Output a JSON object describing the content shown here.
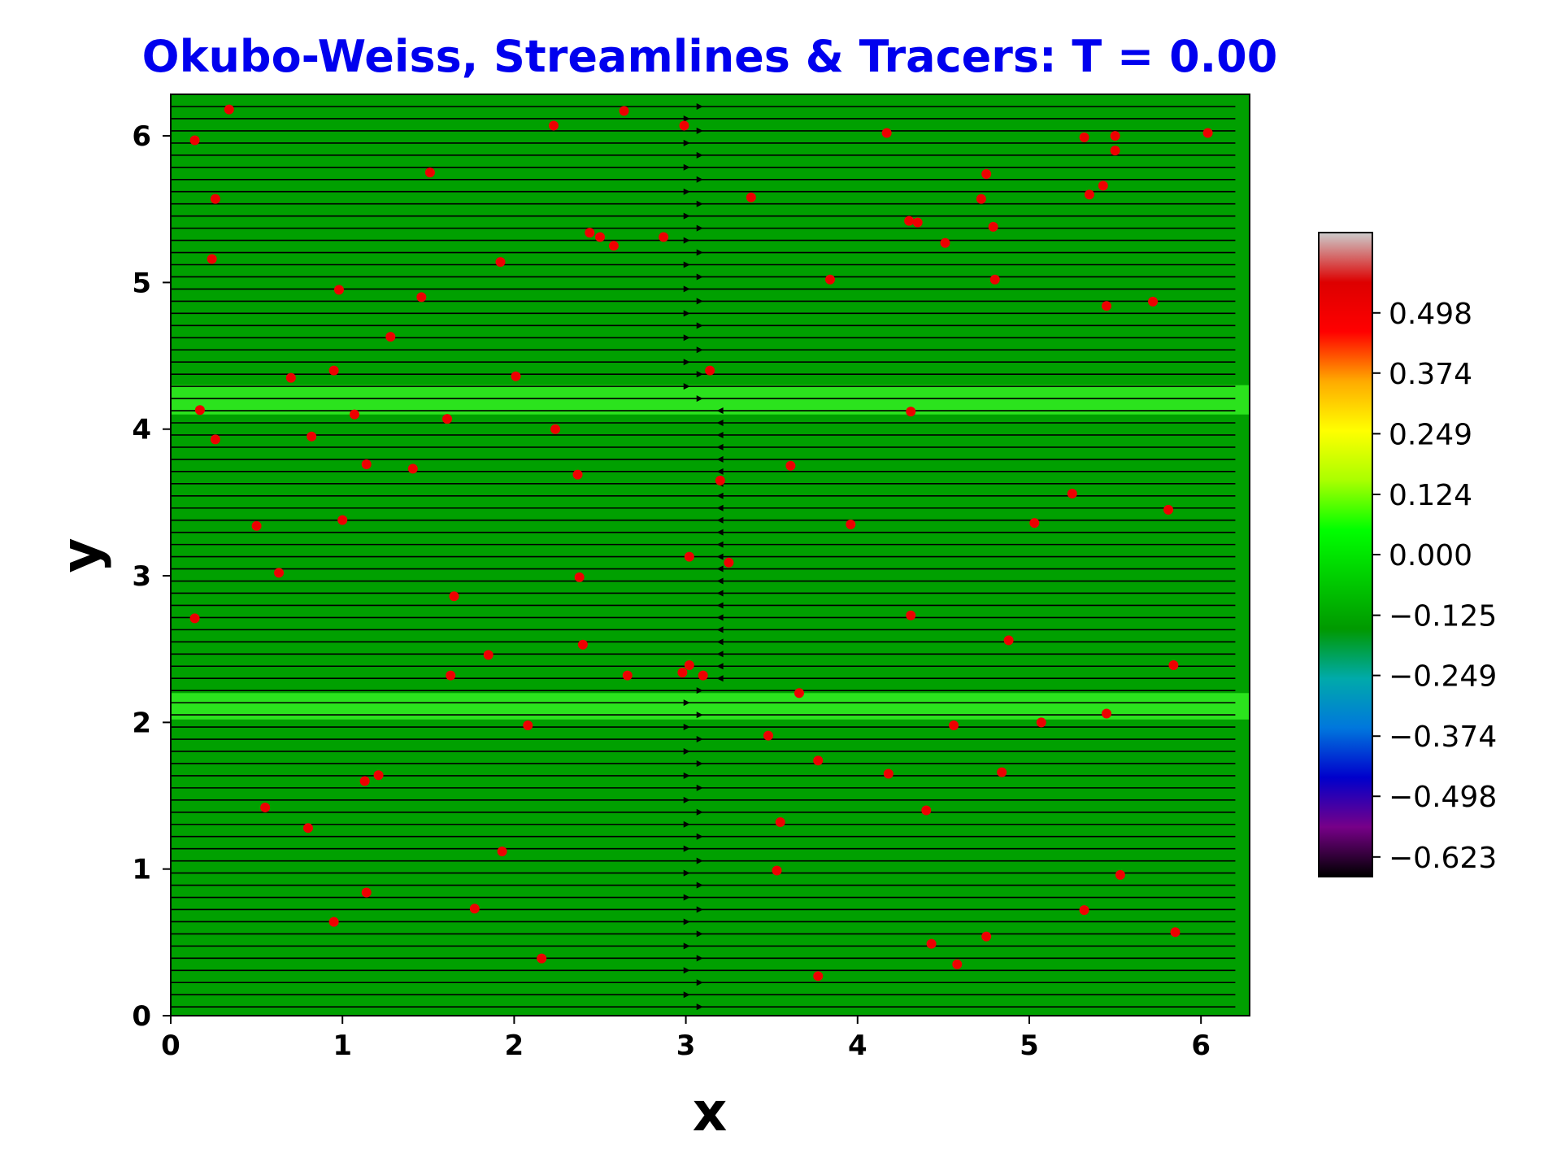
{
  "chart_data": {
    "type": "heatmap",
    "title": "Okubo-Weiss, Streamlines & Tracers: T = 0.00",
    "xlabel": "x",
    "ylabel": "y",
    "xlim": [
      0,
      6.2832
    ],
    "ylim": [
      0,
      6.2832
    ],
    "x_ticks": [
      "0",
      "1",
      "2",
      "3",
      "4",
      "5",
      "6"
    ],
    "y_ticks": [
      "0",
      "1",
      "2",
      "3",
      "4",
      "5",
      "6"
    ],
    "field_colors": {
      "background": "#00a000",
      "band": "#33ee22",
      "streamline": "#000000",
      "tracer": "#ee0000"
    },
    "bands": [
      {
        "y_min": 2.02,
        "y_max": 2.2
      },
      {
        "y_min": 4.1,
        "y_max": 4.3
      }
    ],
    "streamlines": {
      "count": 75,
      "y_min": 0.06,
      "y_max": 6.2,
      "x_start": 0.0,
      "x_end": 6.2,
      "arrow_x_right": 3.1,
      "arrow_x_left": 3.18,
      "leftward_y_range": [
        2.3,
        4.2
      ]
    },
    "tracers": [
      [
        0.14,
        5.97
      ],
      [
        0.34,
        6.18
      ],
      [
        0.26,
        5.57
      ],
      [
        0.24,
        5.16
      ],
      [
        0.98,
        4.95
      ],
      [
        1.28,
        4.63
      ],
      [
        1.46,
        4.9
      ],
      [
        1.51,
        5.75
      ],
      [
        0.7,
        4.35
      ],
      [
        0.95,
        4.4
      ],
      [
        2.23,
        6.07
      ],
      [
        2.64,
        6.17
      ],
      [
        2.99,
        6.07
      ],
      [
        2.44,
        5.34
      ],
      [
        2.5,
        5.31
      ],
      [
        2.58,
        5.25
      ],
      [
        2.87,
        5.31
      ],
      [
        1.92,
        5.14
      ],
      [
        2.01,
        4.36
      ],
      [
        3.14,
        4.4
      ],
      [
        3.38,
        5.58
      ],
      [
        3.84,
        5.02
      ],
      [
        4.17,
        6.02
      ],
      [
        4.3,
        5.42
      ],
      [
        4.35,
        5.41
      ],
      [
        4.51,
        5.27
      ],
      [
        4.72,
        5.57
      ],
      [
        4.75,
        5.74
      ],
      [
        4.79,
        5.38
      ],
      [
        4.8,
        5.02
      ],
      [
        5.32,
        5.99
      ],
      [
        5.5,
        6.0
      ],
      [
        5.35,
        5.6
      ],
      [
        5.43,
        5.66
      ],
      [
        5.5,
        5.9
      ],
      [
        5.45,
        4.84
      ],
      [
        5.72,
        4.87
      ],
      [
        6.04,
        6.02
      ],
      [
        0.17,
        4.13
      ],
      [
        0.26,
        3.93
      ],
      [
        0.82,
        3.95
      ],
      [
        1.07,
        4.1
      ],
      [
        1.14,
        3.76
      ],
      [
        1.41,
        3.73
      ],
      [
        1.61,
        4.07
      ],
      [
        2.24,
        4.0
      ],
      [
        2.37,
        3.69
      ],
      [
        3.2,
        3.65
      ],
      [
        3.61,
        3.75
      ],
      [
        4.31,
        4.12
      ],
      [
        0.5,
        3.34
      ],
      [
        1.0,
        3.38
      ],
      [
        0.63,
        3.02
      ],
      [
        1.65,
        2.86
      ],
      [
        2.38,
        2.99
      ],
      [
        3.02,
        3.13
      ],
      [
        3.25,
        3.09
      ],
      [
        3.96,
        3.35
      ],
      [
        5.03,
        3.36
      ],
      [
        5.25,
        3.56
      ],
      [
        5.81,
        3.45
      ],
      [
        0.14,
        2.71
      ],
      [
        2.4,
        2.53
      ],
      [
        1.85,
        2.46
      ],
      [
        1.63,
        2.32
      ],
      [
        2.66,
        2.32
      ],
      [
        2.98,
        2.34
      ],
      [
        3.02,
        2.39
      ],
      [
        3.1,
        2.32
      ],
      [
        4.31,
        2.73
      ],
      [
        4.88,
        2.56
      ],
      [
        5.84,
        2.39
      ],
      [
        3.66,
        2.2
      ],
      [
        2.08,
        1.98
      ],
      [
        3.48,
        1.91
      ],
      [
        4.56,
        1.98
      ],
      [
        5.07,
        2.0
      ],
      [
        5.45,
        2.06
      ],
      [
        3.77,
        1.74
      ],
      [
        4.18,
        1.65
      ],
      [
        4.84,
        1.66
      ],
      [
        1.13,
        1.6
      ],
      [
        1.21,
        1.64
      ],
      [
        0.55,
        1.42
      ],
      [
        0.8,
        1.28
      ],
      [
        1.93,
        1.12
      ],
      [
        3.55,
        1.32
      ],
      [
        4.4,
        1.4
      ],
      [
        3.53,
        0.99
      ],
      [
        5.53,
        0.96
      ],
      [
        1.14,
        0.84
      ],
      [
        1.77,
        0.73
      ],
      [
        0.95,
        0.64
      ],
      [
        2.16,
        0.39
      ],
      [
        4.43,
        0.49
      ],
      [
        4.58,
        0.35
      ],
      [
        4.75,
        0.54
      ],
      [
        5.32,
        0.72
      ],
      [
        5.85,
        0.57
      ],
      [
        3.77,
        0.27
      ]
    ],
    "colorbar": {
      "colormap": "nipy_spectral",
      "vmin": -0.6635,
      "vmax": 0.6635,
      "stops": [
        "#000000",
        "#770088",
        "#0000cc",
        "#0077dd",
        "#00aaaa",
        "#009900",
        "#00cc00",
        "#00ff00",
        "#aaff00",
        "#ffff00",
        "#ffaa00",
        "#ff0000",
        "#dd0000",
        "#cccccc"
      ],
      "tick_labels": [
        "0.498",
        "0.374",
        "0.249",
        "0.124",
        "0.000",
        "−0.125",
        "−0.249",
        "−0.374",
        "−0.498",
        "−0.623"
      ],
      "tick_values": [
        0.498,
        0.374,
        0.249,
        0.124,
        0.0,
        -0.125,
        -0.249,
        -0.374,
        -0.498,
        -0.623
      ]
    }
  }
}
